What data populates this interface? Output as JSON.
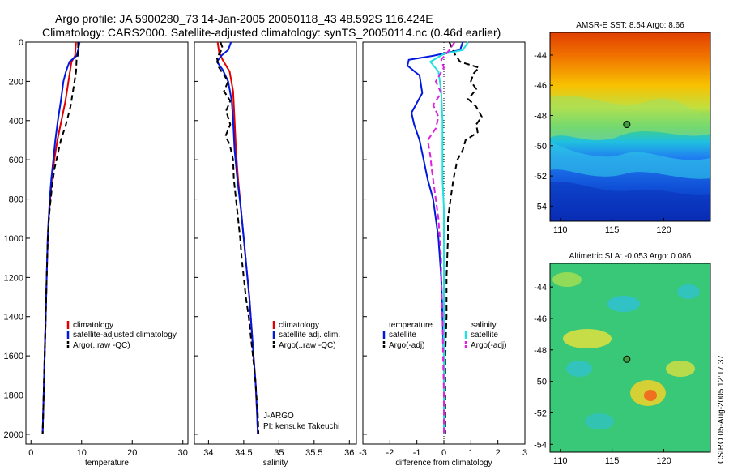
{
  "header": {
    "line1": "Argo profile: JA 5900280_73 14-Jan-2005 20050118_43 48.592S 116.424E",
    "line2": "Climatology: CARS2000. Satellite-adjusted climatology: synTS_20050114.nc (0.46d earlier)"
  },
  "side_label": "CSIRO 05-Aug-2005 12:17:37",
  "colors": {
    "climatology": "#e00000",
    "satellite": "#0018e0",
    "argo": "#000000",
    "salinity_satellite": "#20e0e0",
    "salinity_argo": "#e020e0"
  },
  "chart_data": [
    {
      "type": "line",
      "xlabel": "temperature",
      "ylabel": "",
      "xlim": [
        -1,
        31
      ],
      "ylim": [
        2050,
        0
      ],
      "xticks": [
        0,
        10,
        20,
        30
      ],
      "yticks": [
        0,
        200,
        400,
        600,
        800,
        1000,
        1200,
        1400,
        1600,
        1800,
        2000
      ],
      "legend": {
        "position": "lower-right",
        "entries": [
          "climatology",
          "satellite-adjusted climatology",
          "Argo(..raw -QC)"
        ]
      },
      "series": [
        {
          "name": "climatology",
          "color": "#e00000",
          "style": "solid",
          "points": [
            [
              8.9,
              0
            ],
            [
              8.8,
              30
            ],
            [
              8.7,
              70
            ],
            [
              8.0,
              100
            ],
            [
              7.4,
              200
            ],
            [
              6.8,
              300
            ],
            [
              6.0,
              400
            ],
            [
              5.2,
              500
            ],
            [
              4.6,
              600
            ],
            [
              4.1,
              700
            ],
            [
              3.8,
              800
            ],
            [
              3.5,
              900
            ],
            [
              3.3,
              1000
            ],
            [
              3.1,
              1200
            ],
            [
              2.9,
              1400
            ],
            [
              2.7,
              1600
            ],
            [
              2.5,
              1800
            ],
            [
              2.3,
              2000
            ]
          ]
        },
        {
          "name": "satellite-adjusted climatology",
          "color": "#0018e0",
          "style": "solid",
          "points": [
            [
              9.6,
              0
            ],
            [
              9.4,
              30
            ],
            [
              9.0,
              70
            ],
            [
              7.6,
              100
            ],
            [
              6.9,
              150
            ],
            [
              6.4,
              200
            ],
            [
              5.9,
              300
            ],
            [
              5.3,
              400
            ],
            [
              4.8,
              500
            ],
            [
              4.4,
              600
            ],
            [
              4.0,
              700
            ],
            [
              3.7,
              800
            ],
            [
              3.5,
              900
            ],
            [
              3.3,
              1000
            ],
            [
              3.1,
              1200
            ],
            [
              2.9,
              1400
            ],
            [
              2.7,
              1600
            ],
            [
              2.5,
              1800
            ],
            [
              2.3,
              2000
            ]
          ]
        },
        {
          "name": "Argo(..raw -QC)",
          "color": "#000000",
          "style": "dashed",
          "points": [
            [
              9.3,
              0
            ],
            [
              9.3,
              60
            ],
            [
              9.0,
              90
            ],
            [
              8.9,
              150
            ],
            [
              8.3,
              250
            ],
            [
              7.8,
              330
            ],
            [
              6.9,
              420
            ],
            [
              5.9,
              500
            ],
            [
              5.2,
              580
            ],
            [
              4.6,
              650
            ],
            [
              4.1,
              750
            ],
            [
              3.7,
              850
            ],
            [
              3.4,
              950
            ],
            [
              3.2,
              1100
            ],
            [
              3.0,
              1300
            ],
            [
              2.8,
              1500
            ],
            [
              2.6,
              1700
            ],
            [
              2.4,
              1900
            ],
            [
              2.3,
              2000
            ]
          ]
        }
      ]
    },
    {
      "type": "line",
      "xlabel": "salinity",
      "ylabel": "",
      "xlim": [
        33.8,
        36.1
      ],
      "ylim": [
        2050,
        0
      ],
      "xticks": [
        34,
        34.5,
        35,
        35.5,
        36
      ],
      "xticklabels": [
        "34",
        "34.5",
        "35",
        "35.5",
        "36"
      ],
      "legend": {
        "position": "lower-right",
        "entries": [
          "climatology",
          "satellite adj. clim.",
          "Argo(..raw -QC)"
        ]
      },
      "annotations": [
        "J-ARGO",
        "PI: kensuke Takeuchi"
      ],
      "series": [
        {
          "name": "climatology",
          "color": "#e00000",
          "style": "solid",
          "points": [
            [
              34.13,
              0
            ],
            [
              34.15,
              50
            ],
            [
              34.2,
              90
            ],
            [
              34.3,
              150
            ],
            [
              34.35,
              250
            ],
            [
              34.37,
              400
            ],
            [
              34.39,
              550
            ],
            [
              34.42,
              700
            ],
            [
              34.46,
              850
            ],
            [
              34.5,
              1000
            ],
            [
              34.54,
              1150
            ],
            [
              34.58,
              1300
            ],
            [
              34.61,
              1450
            ],
            [
              34.64,
              1600
            ],
            [
              34.67,
              1750
            ],
            [
              34.69,
              1900
            ],
            [
              34.7,
              2000
            ]
          ]
        },
        {
          "name": "satellite adj. clim.",
          "color": "#0018e0",
          "style": "solid",
          "points": [
            [
              34.32,
              0
            ],
            [
              34.28,
              40
            ],
            [
              34.18,
              70
            ],
            [
              34.12,
              100
            ],
            [
              34.2,
              140
            ],
            [
              34.28,
              200
            ],
            [
              34.33,
              300
            ],
            [
              34.35,
              400
            ],
            [
              34.37,
              550
            ],
            [
              34.41,
              700
            ],
            [
              34.46,
              850
            ],
            [
              34.5,
              1000
            ],
            [
              34.54,
              1150
            ],
            [
              34.58,
              1300
            ],
            [
              34.61,
              1450
            ],
            [
              34.64,
              1600
            ],
            [
              34.67,
              1750
            ],
            [
              34.69,
              1900
            ],
            [
              34.7,
              2000
            ]
          ]
        },
        {
          "name": "Argo(..raw -QC)",
          "color": "#000000",
          "style": "dashed",
          "points": [
            [
              34.17,
              0
            ],
            [
              34.2,
              30
            ],
            [
              34.12,
              80
            ],
            [
              34.15,
              130
            ],
            [
              34.28,
              200
            ],
            [
              34.22,
              250
            ],
            [
              34.31,
              300
            ],
            [
              34.25,
              350
            ],
            [
              34.31,
              420
            ],
            [
              34.24,
              480
            ],
            [
              34.3,
              520
            ],
            [
              34.35,
              600
            ],
            [
              34.36,
              700
            ],
            [
              34.39,
              800
            ],
            [
              34.42,
              900
            ],
            [
              34.45,
              1000
            ],
            [
              34.47,
              1100
            ],
            [
              34.5,
              1200
            ],
            [
              34.53,
              1300
            ],
            [
              34.57,
              1400
            ],
            [
              34.6,
              1500
            ],
            [
              34.63,
              1600
            ],
            [
              34.66,
              1700
            ],
            [
              34.68,
              1800
            ],
            [
              34.7,
              1900
            ],
            [
              34.71,
              2000
            ]
          ]
        }
      ]
    },
    {
      "type": "line",
      "xlabel": "difference from climatology",
      "ylabel": "",
      "xlim": [
        -3,
        3
      ],
      "ylim": [
        2050,
        0
      ],
      "xticks": [
        -3,
        -2,
        -1,
        0,
        1,
        2,
        3
      ],
      "legend": {
        "position": "lower-center",
        "entries": [
          "temperature",
          "satellite",
          "Argo(-adj)",
          "salinity",
          "satellite",
          "Argo(-adj)"
        ]
      },
      "series": [
        {
          "name": "temperature satellite",
          "color": "#0018e0",
          "style": "solid",
          "points": [
            [
              0.7,
              0
            ],
            [
              0.6,
              40
            ],
            [
              -0.4,
              70
            ],
            [
              -1.3,
              90
            ],
            [
              -1.35,
              120
            ],
            [
              -0.9,
              170
            ],
            [
              -0.8,
              260
            ],
            [
              -1.2,
              360
            ],
            [
              -1.1,
              420
            ],
            [
              -0.9,
              500
            ],
            [
              -0.75,
              600
            ],
            [
              -0.6,
              700
            ],
            [
              -0.4,
              800
            ],
            [
              -0.3,
              900
            ],
            [
              -0.2,
              1000
            ],
            [
              -0.1,
              1200
            ],
            [
              -0.05,
              1400
            ],
            [
              0,
              1600
            ],
            [
              0,
              1800
            ],
            [
              0,
              2000
            ]
          ]
        },
        {
          "name": "temperature Argo(-adj)",
          "color": "#000000",
          "style": "dashed",
          "points": [
            [
              0.2,
              0
            ],
            [
              0.4,
              60
            ],
            [
              0.6,
              100
            ],
            [
              1.3,
              130
            ],
            [
              1.1,
              160
            ],
            [
              1.0,
              200
            ],
            [
              1.2,
              240
            ],
            [
              0.9,
              290
            ],
            [
              1.2,
              330
            ],
            [
              1.4,
              380
            ],
            [
              1.2,
              420
            ],
            [
              1.25,
              460
            ],
            [
              0.8,
              500
            ],
            [
              0.7,
              550
            ],
            [
              0.5,
              600
            ],
            [
              0.35,
              700
            ],
            [
              0.25,
              800
            ],
            [
              0.15,
              900
            ],
            [
              0.15,
              1000
            ],
            [
              0.1,
              1200
            ],
            [
              0.1,
              1400
            ],
            [
              0.05,
              1600
            ],
            [
              0.05,
              1800
            ],
            [
              0.05,
              2000
            ]
          ]
        },
        {
          "name": "salinity satellite",
          "color": "#20e0e0",
          "style": "solid",
          "points": [
            [
              0.9,
              0
            ],
            [
              0.7,
              40
            ],
            [
              0.0,
              60
            ],
            [
              -0.5,
              100
            ],
            [
              -0.2,
              150
            ],
            [
              -0.1,
              250
            ],
            [
              -0.05,
              400
            ],
            [
              -0.05,
              550
            ],
            [
              -0.05,
              700
            ],
            [
              0,
              850
            ],
            [
              0,
              1000
            ],
            [
              0,
              1200
            ],
            [
              0,
              1400
            ],
            [
              0,
              1600
            ],
            [
              0,
              1800
            ],
            [
              0,
              2000
            ]
          ]
        },
        {
          "name": "salinity Argo(-adj)",
          "color": "#e020e0",
          "style": "dashed",
          "points": [
            [
              0.4,
              0
            ],
            [
              0.2,
              40
            ],
            [
              -0.1,
              90
            ],
            [
              0.0,
              130
            ],
            [
              -0.3,
              200
            ],
            [
              -0.1,
              260
            ],
            [
              -0.4,
              320
            ],
            [
              -0.2,
              380
            ],
            [
              -0.3,
              440
            ],
            [
              -0.6,
              500
            ],
            [
              -0.5,
              580
            ],
            [
              -0.45,
              650
            ],
            [
              -0.4,
              700
            ],
            [
              -0.3,
              800
            ],
            [
              -0.2,
              900
            ],
            [
              -0.15,
              1000
            ],
            [
              -0.1,
              1100
            ],
            [
              -0.1,
              1200
            ],
            [
              -0.05,
              1400
            ],
            [
              -0.03,
              1600
            ],
            [
              0,
              1800
            ],
            [
              0,
              2000
            ]
          ]
        }
      ]
    },
    {
      "type": "heatmap",
      "title": "AMSR-E SST: 8.54 Argo: 8.66",
      "xlim": [
        109,
        124.5
      ],
      "ylim": [
        -55,
        -42.5
      ],
      "xticks": [
        110,
        115,
        120
      ],
      "yticks": [
        -44,
        -46,
        -48,
        -50,
        -52,
        -54
      ],
      "marker": {
        "lon": 116.424,
        "lat": -48.592
      },
      "colormap": "jet",
      "description": "north warm (red-orange), south cold (blue)"
    },
    {
      "type": "heatmap",
      "title": "Altimetric SLA: -0.053 Argo: 0.086",
      "xlim": [
        109,
        124.5
      ],
      "ylim": [
        -54.5,
        -42.5
      ],
      "xticks": [
        110,
        115,
        120
      ],
      "yticks": [
        -44,
        -46,
        -48,
        -50,
        -52,
        -54
      ],
      "marker": {
        "lon": 116.424,
        "lat": -48.592
      },
      "colormap": "jet",
      "description": "mostly green with scattered yellow and cyan eddies"
    }
  ]
}
